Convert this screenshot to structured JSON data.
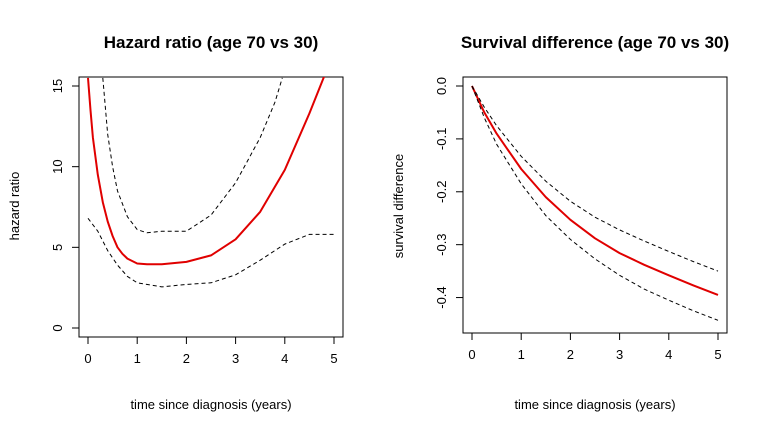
{
  "chart_data": [
    {
      "type": "line",
      "title": "Hazard ratio (age 70 vs 30)",
      "xlabel": "time since diagnosis (years)",
      "ylabel": "hazard ratio",
      "xlim": [
        0,
        5
      ],
      "ylim": [
        0,
        15
      ],
      "xticks": [
        "0",
        "1",
        "2",
        "3",
        "4",
        "5"
      ],
      "yticks": [
        "0",
        "5",
        "10",
        "15"
      ],
      "grid": false,
      "series": [
        {
          "role": "estimate",
          "color": "#e00000",
          "linestyle": "solid",
          "x": [
            0.0,
            0.05,
            0.1,
            0.2,
            0.3,
            0.4,
            0.5,
            0.6,
            0.7,
            0.8,
            1.0,
            1.2,
            1.5,
            2.0,
            2.5,
            3.0,
            3.5,
            4.0,
            4.5,
            4.8
          ],
          "y": [
            15.5,
            13.5,
            11.8,
            9.5,
            7.8,
            6.6,
            5.7,
            5.0,
            4.6,
            4.3,
            4.0,
            3.95,
            3.95,
            4.1,
            4.5,
            5.5,
            7.2,
            9.8,
            13.3,
            15.6
          ]
        },
        {
          "role": "upper",
          "color": "#000000",
          "linestyle": "dashed",
          "x": [
            0.3,
            0.4,
            0.5,
            0.6,
            0.8,
            1.0,
            1.2,
            1.5,
            2.0,
            2.5,
            3.0,
            3.5,
            3.8,
            3.95
          ],
          "y": [
            15.5,
            12.0,
            10.0,
            8.5,
            6.9,
            6.1,
            5.9,
            6.0,
            6.0,
            7.0,
            9.0,
            11.8,
            14.0,
            15.5
          ]
        },
        {
          "role": "lower",
          "color": "#000000",
          "linestyle": "dashed",
          "x": [
            0.0,
            0.2,
            0.4,
            0.6,
            0.8,
            1.0,
            1.5,
            2.0,
            2.5,
            3.0,
            3.5,
            4.0,
            4.5,
            5.0
          ],
          "y": [
            6.8,
            6.0,
            4.8,
            3.9,
            3.2,
            2.8,
            2.55,
            2.7,
            2.8,
            3.3,
            4.2,
            5.2,
            5.8,
            5.8
          ]
        }
      ]
    },
    {
      "type": "line",
      "title": "Survival difference (age 70 vs 30)",
      "xlabel": "time since diagnosis (years)",
      "ylabel": "survival difference",
      "xlim": [
        0,
        5
      ],
      "ylim": [
        -0.45,
        0.0
      ],
      "xticks": [
        "0",
        "1",
        "2",
        "3",
        "4",
        "5"
      ],
      "yticks": [
        "0.0",
        "-0.1",
        "-0.2",
        "-0.3",
        "-0.4"
      ],
      "grid": false,
      "series": [
        {
          "role": "estimate",
          "color": "#e00000",
          "linestyle": "solid",
          "x": [
            0.0,
            0.25,
            0.5,
            1.0,
            1.5,
            2.0,
            2.5,
            3.0,
            3.5,
            4.0,
            4.5,
            5.0
          ],
          "y": [
            0.0,
            -0.05,
            -0.09,
            -0.157,
            -0.21,
            -0.253,
            -0.288,
            -0.316,
            -0.338,
            -0.358,
            -0.377,
            -0.395
          ]
        },
        {
          "role": "upper",
          "color": "#000000",
          "linestyle": "dashed",
          "x": [
            0.0,
            0.25,
            0.5,
            1.0,
            1.5,
            2.0,
            2.5,
            3.0,
            3.5,
            4.0,
            4.5,
            5.0
          ],
          "y": [
            0.0,
            -0.04,
            -0.075,
            -0.133,
            -0.18,
            -0.218,
            -0.248,
            -0.272,
            -0.293,
            -0.313,
            -0.332,
            -0.35
          ]
        },
        {
          "role": "lower",
          "color": "#000000",
          "linestyle": "dashed",
          "x": [
            0.0,
            0.25,
            0.5,
            1.0,
            1.5,
            2.0,
            2.5,
            3.0,
            3.5,
            4.0,
            4.5,
            5.0
          ],
          "y": [
            0.0,
            -0.06,
            -0.11,
            -0.185,
            -0.245,
            -0.29,
            -0.327,
            -0.358,
            -0.384,
            -0.405,
            -0.425,
            -0.443
          ]
        }
      ]
    }
  ]
}
